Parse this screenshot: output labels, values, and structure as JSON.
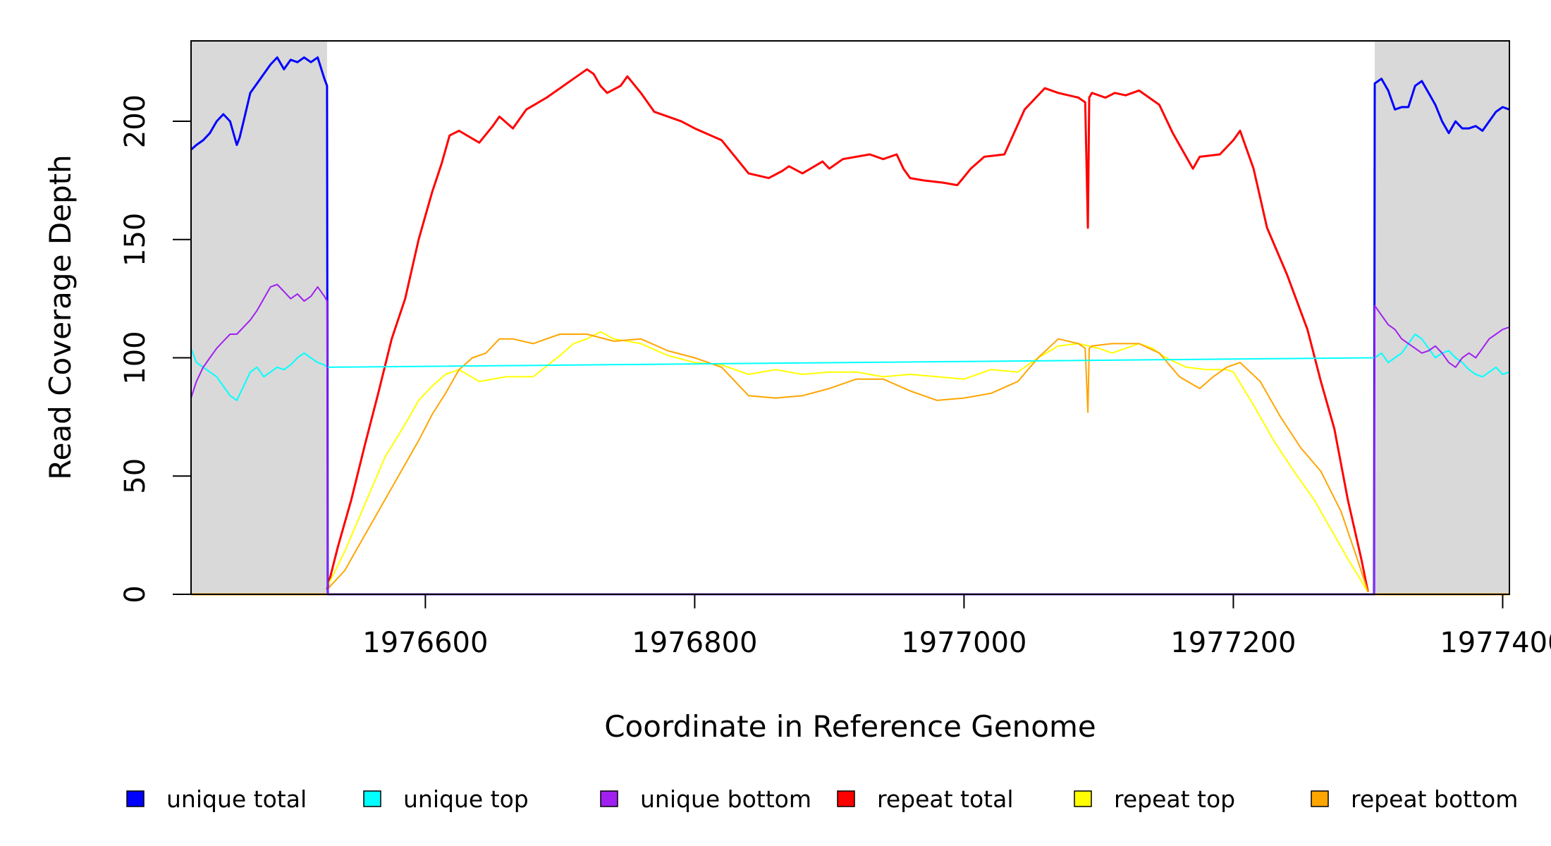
{
  "chart_data": {
    "type": "line",
    "title": "",
    "xlabel": "Coordinate in Reference Genome",
    "ylabel": "Read Coverage Depth",
    "xlim": [
      1976426,
      1977405
    ],
    "ylim": [
      0,
      234
    ],
    "x_ticks": [
      {
        "value": 1976600,
        "label": "1976600"
      },
      {
        "value": 1976800,
        "label": "1976800"
      },
      {
        "value": 1977000,
        "label": "1977000"
      },
      {
        "value": 1977200,
        "label": "1977200"
      },
      {
        "value": 1977400,
        "label": "1977400"
      }
    ],
    "y_ticks": [
      {
        "value": 0,
        "label": "0"
      },
      {
        "value": 50,
        "label": "50"
      },
      {
        "value": 100,
        "label": "100"
      },
      {
        "value": 150,
        "label": "150"
      },
      {
        "value": 200,
        "label": "200"
      }
    ],
    "grid": false,
    "legend_position": "bottom",
    "shaded_regions": [
      {
        "from": 1976426,
        "to": 1976527,
        "color": "#d9d9d9"
      },
      {
        "from": 1977305,
        "to": 1977405,
        "color": "#d9d9d9"
      }
    ],
    "series": [
      {
        "name": "repeat total",
        "color": "#ff0000",
        "width": 3,
        "x": [
          1976527,
          1976535,
          1976545,
          1976555,
          1976565,
          1976575,
          1976585,
          1976595,
          1976605,
          1976612,
          1976618,
          1976625,
          1976640,
          1976650,
          1976655,
          1976665,
          1976675,
          1976690,
          1976700,
          1976710,
          1976720,
          1976725,
          1976730,
          1976735,
          1976745,
          1976750,
          1976760,
          1976770,
          1976790,
          1976800,
          1976820,
          1976840,
          1976855,
          1976865,
          1976870,
          1976880,
          1976895,
          1976900,
          1976910,
          1976930,
          1976940,
          1976950,
          1976955,
          1976960,
          1976970,
          1976985,
          1976995,
          1977005,
          1977015,
          1977030,
          1977045,
          1977060,
          1977070,
          1977085,
          1977090,
          1977092,
          1977093,
          1977095,
          1977105,
          1977112,
          1977120,
          1977130,
          1977145,
          1977155,
          1977170,
          1977175,
          1977190,
          1977200,
          1977205,
          1977215,
          1977225,
          1977240,
          1977255,
          1977265,
          1977275,
          1977285,
          1977295,
          1977300
        ],
        "y": [
          2,
          20,
          40,
          63,
          85,
          108,
          125,
          150,
          170,
          182,
          194,
          196,
          191,
          198,
          202,
          197,
          205,
          210,
          214,
          218,
          222,
          220,
          215,
          212,
          215,
          219,
          212,
          204,
          200,
          197,
          192,
          178,
          176,
          179,
          181,
          178,
          183,
          180,
          184,
          186,
          184,
          186,
          180,
          176,
          175,
          174,
          173,
          180,
          185,
          186,
          205,
          214,
          212,
          210,
          208,
          155,
          210,
          212,
          210,
          212,
          211,
          213,
          207,
          195,
          180,
          185,
          186,
          192,
          196,
          180,
          155,
          135,
          112,
          90,
          70,
          40,
          15,
          1
        ]
      },
      {
        "name": "repeat top",
        "color": "#ffff00",
        "width": 2,
        "x": [
          1976527,
          1976540,
          1976555,
          1976570,
          1976585,
          1976595,
          1976605,
          1976615,
          1976625,
          1976640,
          1976660,
          1976680,
          1976700,
          1976710,
          1976720,
          1976730,
          1976740,
          1976760,
          1976780,
          1976800,
          1976820,
          1976840,
          1976860,
          1976880,
          1976900,
          1976920,
          1976940,
          1976960,
          1976980,
          1977000,
          1977020,
          1977040,
          1977055,
          1977070,
          1977085,
          1977100,
          1977110,
          1977120,
          1977130,
          1977140,
          1977150,
          1977165,
          1977180,
          1977195,
          1977200,
          1977215,
          1977230,
          1977245,
          1977260,
          1977270,
          1977285,
          1977300
        ],
        "y": [
          3,
          18,
          38,
          58,
          72,
          82,
          88,
          93,
          95,
          90,
          92,
          92,
          101,
          106,
          108,
          111,
          108,
          106,
          101,
          98,
          97,
          93,
          95,
          93,
          94,
          94,
          92,
          93,
          92,
          91,
          95,
          94,
          100,
          105,
          106,
          104,
          102,
          104,
          106,
          104,
          100,
          96,
          95,
          95,
          94,
          80,
          65,
          52,
          40,
          30,
          15,
          1
        ]
      },
      {
        "name": "repeat bottom",
        "color": "#ffa500",
        "width": 2,
        "x": [
          1976527,
          1976540,
          1976555,
          1976570,
          1976585,
          1976595,
          1976605,
          1976615,
          1976625,
          1976635,
          1976645,
          1976655,
          1976665,
          1976680,
          1976700,
          1976720,
          1976740,
          1976760,
          1976780,
          1976800,
          1976820,
          1976840,
          1976860,
          1976880,
          1976900,
          1976920,
          1976940,
          1976960,
          1976980,
          1977000,
          1977020,
          1977040,
          1977055,
          1977070,
          1977085,
          1977090,
          1977092,
          1977093,
          1977095,
          1977110,
          1977130,
          1977145,
          1977160,
          1977175,
          1977185,
          1977195,
          1977205,
          1977220,
          1977235,
          1977250,
          1977265,
          1977280,
          1977292,
          1977300
        ],
        "y": [
          2,
          10,
          25,
          40,
          55,
          65,
          76,
          85,
          95,
          100,
          102,
          108,
          108,
          106,
          110,
          110,
          107,
          108,
          103,
          100,
          96,
          84,
          83,
          84,
          87,
          91,
          91,
          86,
          82,
          83,
          85,
          90,
          100,
          108,
          106,
          104,
          77,
          104,
          105,
          106,
          106,
          102,
          92,
          87,
          92,
          96,
          98,
          90,
          75,
          62,
          52,
          35,
          15,
          1
        ]
      },
      {
        "name": "unique total",
        "color": "#0000ff",
        "width": 3,
        "x": [
          1976426,
          1976430,
          1976435,
          1976440,
          1976445,
          1976450,
          1976455,
          1976460,
          1976462,
          1976465,
          1976470,
          1976475,
          1976480,
          1976485,
          1976490,
          1976495,
          1976500,
          1976505,
          1976510,
          1976515,
          1976520,
          1976525,
          1976527,
          1976527.5,
          1977304.5,
          1977305,
          1977310,
          1977315,
          1977320,
          1977325,
          1977330,
          1977335,
          1977340,
          1977345,
          1977350,
          1977355,
          1977360,
          1977365,
          1977370,
          1977375,
          1977380,
          1977385,
          1977390,
          1977395,
          1977400,
          1977405
        ],
        "y": [
          188,
          190,
          192,
          195,
          200,
          203,
          200,
          190,
          193,
          200,
          212,
          216,
          220,
          224,
          227,
          222,
          226,
          225,
          227,
          225,
          227,
          218,
          215,
          0,
          0,
          216,
          218,
          213,
          205,
          206,
          206,
          215,
          217,
          212,
          207,
          200,
          195,
          200,
          197,
          197,
          198,
          196,
          200,
          204,
          206,
          205
        ]
      },
      {
        "name": "unique top",
        "color": "#00ffff",
        "width": 2,
        "x": [
          1976426,
          1976430,
          1976435,
          1976440,
          1976445,
          1976450,
          1976455,
          1976460,
          1976465,
          1976470,
          1976475,
          1976480,
          1976485,
          1976490,
          1976495,
          1976500,
          1976505,
          1976510,
          1976515,
          1976520,
          1976525,
          1976527,
          1977305,
          1977310,
          1977315,
          1977320,
          1977325,
          1977330,
          1977335,
          1977340,
          1977345,
          1977350,
          1977355,
          1977360,
          1977365,
          1977370,
          1977375,
          1977380,
          1977385,
          1977390,
          1977395,
          1977400,
          1977405
        ],
        "y": [
          104,
          98,
          96,
          94,
          92,
          88,
          84,
          82,
          88,
          94,
          96,
          92,
          94,
          96,
          95,
          97,
          100,
          102,
          100,
          98,
          97,
          96,
          100,
          102,
          98,
          100,
          102,
          106,
          110,
          108,
          104,
          100,
          102,
          103,
          100,
          98,
          95,
          93,
          92,
          94,
          96,
          93,
          94
        ]
      },
      {
        "name": "unique bottom",
        "color": "#a020f0",
        "width": 2,
        "x": [
          1976426,
          1976430,
          1976435,
          1976440,
          1976445,
          1976450,
          1976455,
          1976460,
          1976465,
          1976470,
          1976475,
          1976480,
          1976485,
          1976490,
          1976495,
          1976500,
          1976505,
          1976510,
          1976515,
          1976520,
          1976525,
          1976527,
          1976527.5,
          1977304.5,
          1977305,
          1977310,
          1977315,
          1977320,
          1977325,
          1977330,
          1977335,
          1977340,
          1977345,
          1977350,
          1977355,
          1977360,
          1977365,
          1977370,
          1977375,
          1977380,
          1977385,
          1977390,
          1977395,
          1977400,
          1977405
        ],
        "y": [
          83,
          90,
          96,
          100,
          104,
          107,
          110,
          110,
          113,
          116,
          120,
          125,
          130,
          131,
          128,
          125,
          127,
          124,
          126,
          130,
          126,
          124,
          0,
          0,
          122,
          118,
          114,
          112,
          108,
          106,
          104,
          102,
          103,
          105,
          102,
          98,
          96,
          100,
          102,
          100,
          104,
          108,
          110,
          112,
          113
        ]
      }
    ]
  }
}
